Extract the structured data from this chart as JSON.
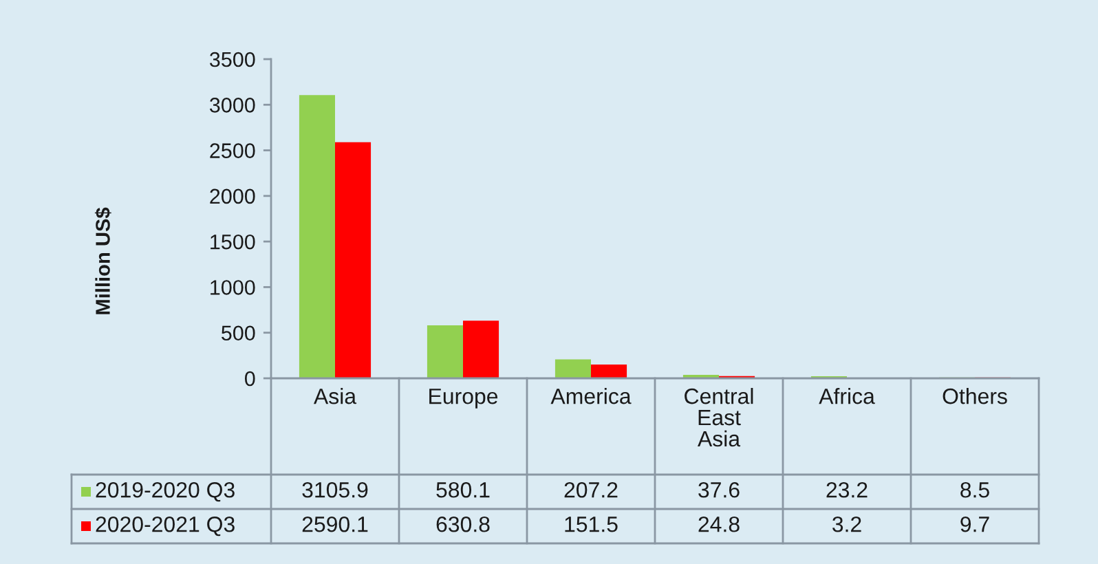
{
  "chart_data": {
    "type": "bar",
    "ylabel": "Million US$",
    "categories": [
      "Asia",
      "Europe",
      "America",
      "Central East Asia",
      "Africa",
      "Others"
    ],
    "series": [
      {
        "name": "2019-2020 Q3",
        "color": "#92d050",
        "values": [
          3105.9,
          580.1,
          207.2,
          37.6,
          23.2,
          8.5
        ]
      },
      {
        "name": "2020-2021 Q3",
        "color": "#ff0000",
        "values": [
          2590.1,
          630.8,
          151.5,
          24.8,
          3.2,
          9.7
        ]
      }
    ],
    "ylim": [
      0,
      3500
    ],
    "yticks": [
      0,
      500,
      1000,
      1500,
      2000,
      2500,
      3000,
      3500
    ],
    "legend": "bottom",
    "data_labels": true
  }
}
